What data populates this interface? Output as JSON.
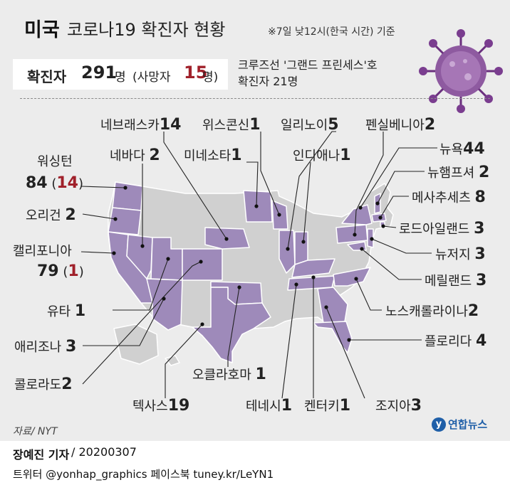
{
  "title": {
    "strong": "미국",
    "rest": "코로나19 확진자 현황"
  },
  "note": "※7일 낮12시(한국 시간) 기준",
  "summary": {
    "label": "확진자",
    "total": "291",
    "unit": "명",
    "deaths_pre": "(사망자",
    "deaths": "15",
    "deaths_post": "명)"
  },
  "ship": {
    "line1": "크루즈선 '그랜드 프린세스'호",
    "line2": "확진자 21명"
  },
  "states": [
    {
      "id": "nebraska",
      "name": "네브래스카",
      "count": "14"
    },
    {
      "id": "wisconsin",
      "name": "위스콘신",
      "count": "1"
    },
    {
      "id": "illinois",
      "name": "일리노이",
      "count": "5"
    },
    {
      "id": "pennsylvania",
      "name": "펜실베니아",
      "count": "2"
    },
    {
      "id": "new-york",
      "name": "뉴욕",
      "count": "44"
    },
    {
      "id": "nevada",
      "name": "네바다",
      "count": "2"
    },
    {
      "id": "minnesota",
      "name": "미네소타",
      "count": "1"
    },
    {
      "id": "indiana",
      "name": "인디애나",
      "count": "1"
    },
    {
      "id": "new-hampshire",
      "name": "뉴햄프셔",
      "count": "2"
    },
    {
      "id": "washington",
      "name": "워싱턴",
      "count": "84",
      "deaths": "14"
    },
    {
      "id": "massachusetts",
      "name": "메사추세츠",
      "count": "8"
    },
    {
      "id": "oregon",
      "name": "오리건",
      "count": "2"
    },
    {
      "id": "rhode-island",
      "name": "로드아일랜드",
      "count": "3"
    },
    {
      "id": "california",
      "name": "캘리포니아",
      "count": "79",
      "deaths": "1"
    },
    {
      "id": "new-jersey",
      "name": "뉴저지",
      "count": "3"
    },
    {
      "id": "maryland",
      "name": "메릴랜드",
      "count": "3"
    },
    {
      "id": "utah",
      "name": "유타",
      "count": "1"
    },
    {
      "id": "north-carolina",
      "name": "노스캐롤라이나",
      "count": "2"
    },
    {
      "id": "arizona",
      "name": "애리조나",
      "count": "3"
    },
    {
      "id": "florida",
      "name": "플로리다",
      "count": "4"
    },
    {
      "id": "colorado",
      "name": "콜로라도",
      "count": "2"
    },
    {
      "id": "oklahoma",
      "name": "오클라호마",
      "count": "1"
    },
    {
      "id": "texas",
      "name": "텍사스",
      "count": "19"
    },
    {
      "id": "tennessee",
      "name": "테네시",
      "count": "1"
    },
    {
      "id": "kentucky",
      "name": "켄터키",
      "count": "1"
    },
    {
      "id": "georgia",
      "name": "조지아",
      "count": "3"
    }
  ],
  "source": "자료/ NYT",
  "logo": "연합뉴스",
  "byline": {
    "name": "장예진 기자",
    "date": "/ 20200307"
  },
  "social": "트위터 @yonhap_graphics  페이스북 tuney.kr/LeYN1",
  "colors": {
    "affected": "#9e8aba",
    "unaffected": "#d0d0d0",
    "border": "#ffffff",
    "death_red": "#a0202a",
    "virus": "#7a3d8f"
  }
}
